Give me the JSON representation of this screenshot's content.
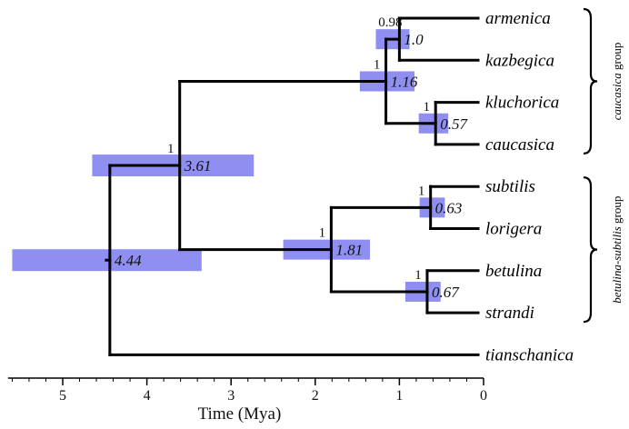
{
  "tree": {
    "taxa": [
      "armenica",
      "kazbegica",
      "kluchorica",
      "caucasica",
      "subtilis",
      "lorigera",
      "betulina",
      "strandi",
      "tianschanica"
    ],
    "nodes": [
      {
        "id": "root",
        "age": 4.44,
        "hpd": [
          5.6,
          3.35
        ],
        "label": "4.44",
        "support": "",
        "children": [
          "n361",
          "tianschanica"
        ]
      },
      {
        "id": "n361",
        "age": 3.61,
        "hpd": [
          4.65,
          2.73
        ],
        "label": "3.61",
        "support": "1",
        "children": [
          "n116",
          "n181"
        ]
      },
      {
        "id": "n116",
        "age": 1.16,
        "hpd": [
          1.47,
          0.82
        ],
        "label": "1.16",
        "support": "1",
        "children": [
          "n10",
          "n057"
        ]
      },
      {
        "id": "n10",
        "age": 1.0,
        "hpd": [
          1.28,
          0.88
        ],
        "label": "1.0",
        "support": "0.98",
        "children": [
          "armenica",
          "kazbegica"
        ]
      },
      {
        "id": "n057",
        "age": 0.57,
        "hpd": [
          0.77,
          0.42
        ],
        "label": "0.57",
        "support": "1",
        "children": [
          "kluchorica",
          "caucasica"
        ]
      },
      {
        "id": "n181",
        "age": 1.81,
        "hpd": [
          2.38,
          1.35
        ],
        "label": "1.81",
        "support": "1",
        "children": [
          "n063",
          "n067"
        ]
      },
      {
        "id": "n063",
        "age": 0.63,
        "hpd": [
          0.76,
          0.46
        ],
        "label": "0.63",
        "support": "1",
        "children": [
          "subtilis",
          "lorigera"
        ]
      },
      {
        "id": "n067",
        "age": 0.67,
        "hpd": [
          0.93,
          0.51
        ],
        "label": "0.67",
        "support": "1",
        "children": [
          "betulina",
          "strandi"
        ]
      }
    ]
  },
  "axis": {
    "label": "Time (Mya)",
    "ticks": [
      "5",
      "4",
      "3",
      "2",
      "1",
      "0"
    ],
    "range": [
      5.65,
      0
    ]
  },
  "groups": [
    {
      "label_italic": "caucasica",
      "label_rest": " group",
      "taxa": [
        "armenica",
        "caucasica"
      ]
    },
    {
      "label_italic": "betulina-subtilis",
      "label_rest": " group",
      "taxa": [
        "subtilis",
        "strandi"
      ]
    }
  ],
  "colors": {
    "hpd_bar": "#7b7bef",
    "branch": "#000000"
  }
}
